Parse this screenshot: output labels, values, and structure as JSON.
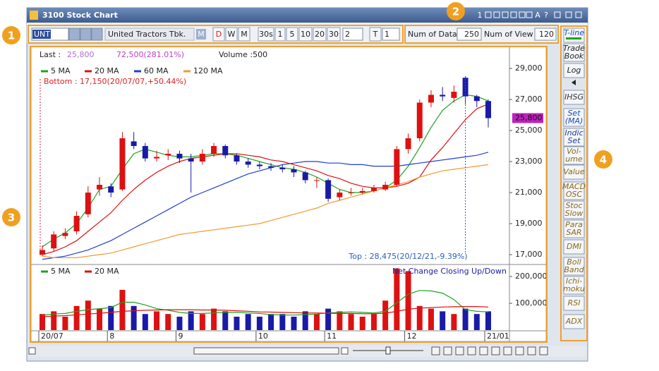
{
  "window": {
    "title": "3100 Stock Chart",
    "title_icons": [
      "1",
      "A",
      "?"
    ]
  },
  "toolbar": {
    "code": "UNTR",
    "name": "United Tractors Tbk.",
    "market": "M",
    "periods": [
      "D",
      "W",
      "M"
    ],
    "intervals": [
      "30s",
      "1",
      "5",
      "10",
      "20",
      "30"
    ],
    "interval_input": "2",
    "tick_label": "T",
    "tick_input": "1",
    "num_of_data_label": "Num of Data",
    "num_of_data": "250",
    "num_of_view_label": "Num of View",
    "num_of_view": "120"
  },
  "info": {
    "last_label": "Last :",
    "last": "25,800",
    "change": "72,500(281.01%)",
    "volume": "Volume :500"
  },
  "chart_data": [
    {
      "type": "candlestick",
      "up_color": "#dd1111",
      "down_color": "#1a1aa8",
      "open": [
        17000,
        17400,
        18200,
        18500,
        19600,
        21200,
        21400,
        21200,
        24300,
        24000,
        23200,
        23400,
        23500,
        23200,
        23000,
        23500,
        24000,
        23400,
        23000,
        22800,
        22700,
        22600,
        22500,
        22300,
        21800,
        21800,
        20700,
        21000,
        21000,
        21100,
        21200,
        21500,
        23800,
        24500,
        26800,
        27300,
        27100,
        28400,
        27200,
        26900
      ],
      "high": [
        17600,
        18500,
        18700,
        19800,
        21400,
        22000,
        21600,
        24900,
        24900,
        24200,
        23700,
        23800,
        23700,
        23500,
        23800,
        24200,
        24100,
        23500,
        23200,
        23000,
        22900,
        22800,
        22700,
        22400,
        22000,
        21900,
        21200,
        21300,
        21300,
        21500,
        21700,
        24000,
        24800,
        27000,
        27600,
        27800,
        27900,
        28500,
        27300,
        27000
      ],
      "low": [
        16900,
        17200,
        18000,
        18300,
        19400,
        20800,
        20700,
        21100,
        23800,
        23000,
        23000,
        23100,
        22900,
        21000,
        22800,
        23300,
        23200,
        22800,
        22600,
        22500,
        22400,
        22300,
        22000,
        21600,
        21300,
        20400,
        20500,
        20800,
        20900,
        21000,
        21100,
        21400,
        23500,
        24300,
        26500,
        26900,
        26800,
        26700,
        26500,
        25200
      ],
      "close": [
        17300,
        18300,
        18400,
        19500,
        21000,
        21500,
        21000,
        24500,
        24000,
        23200,
        23300,
        23500,
        23200,
        23000,
        23500,
        24000,
        23400,
        23000,
        22800,
        22700,
        22600,
        22500,
        22300,
        21800,
        21800,
        20600,
        21000,
        21000,
        21100,
        21300,
        21500,
        23800,
        24500,
        26800,
        27300,
        27200,
        27500,
        27200,
        26900,
        25800
      ],
      "series": [
        {
          "name": "5 MA",
          "color": "#1fa31f",
          "values": [
            17500,
            18000,
            18400,
            19000,
            20000,
            21200,
            21400,
            22500,
            23500,
            23800,
            23600,
            23400,
            23300,
            23300,
            23400,
            23500,
            23500,
            23400,
            23200,
            23000,
            22800,
            22600,
            22500,
            22300,
            22000,
            21600,
            21200,
            21000,
            21000,
            21100,
            21300,
            21800,
            22700,
            23900,
            25200,
            26300,
            26900,
            27300,
            27200,
            26900
          ]
        },
        {
          "name": "20 MA",
          "color": "#dd1111",
          "values": [
            17000,
            17200,
            17500,
            17900,
            18500,
            19100,
            19700,
            20500,
            21200,
            21800,
            22300,
            22700,
            23000,
            23200,
            23300,
            23400,
            23500,
            23500,
            23400,
            23300,
            23100,
            23000,
            22800,
            22600,
            22400,
            22100,
            21900,
            21600,
            21400,
            21300,
            21300,
            21400,
            21600,
            22000,
            23100,
            23900,
            24800,
            25700,
            26400,
            26700
          ]
        },
        {
          "name": "60 MA",
          "color": "#1f3fcf",
          "values": [
            16700,
            16800,
            16900,
            17100,
            17300,
            17600,
            17900,
            18300,
            18700,
            19100,
            19500,
            19900,
            20300,
            20700,
            21000,
            21300,
            21600,
            21900,
            22200,
            22400,
            22600,
            22800,
            22900,
            23000,
            23000,
            22900,
            22900,
            22800,
            22800,
            22700,
            22700,
            22700,
            22800,
            22900,
            23000,
            23100,
            23200,
            23300,
            23400,
            23600
          ]
        },
        {
          "name": "120 MA",
          "color": "#f29a2e",
          "values": [
            16900,
            16800,
            16800,
            16800,
            16900,
            17000,
            17100,
            17300,
            17500,
            17700,
            17900,
            18100,
            18300,
            18400,
            18500,
            18600,
            18700,
            18800,
            18900,
            19000,
            19200,
            19400,
            19600,
            19800,
            20000,
            20300,
            20500,
            20700,
            20900,
            21100,
            21300,
            21500,
            21700,
            22000,
            22200,
            22400,
            22500,
            22600,
            22700,
            22800
          ]
        }
      ],
      "ylim": [
        16500,
        30230
      ],
      "yticks": [
        {
          "value": 17000,
          "label": "17,000"
        },
        {
          "value": 19000,
          "label": "19,000"
        },
        {
          "value": 21000,
          "label": "21,000"
        },
        {
          "value": 23000,
          "label": "23,000"
        },
        {
          "value": 25000,
          "label": "25,000"
        },
        {
          "value": 27000,
          "label": "27,000"
        },
        {
          "value": 29000,
          "label": "29,000"
        }
      ],
      "last": {
        "value": 25800,
        "label": "25,800"
      },
      "last_color": "#c020c0",
      "annotations": {
        "bottom": "Bottom : 17,150(20/07/07,+50.44%)",
        "top": "Top : 28,475(20/12/21,-9.39%)"
      }
    },
    {
      "type": "bar",
      "categories": [
        "20/07",
        null,
        null,
        null,
        null,
        null,
        "8",
        null,
        null,
        null,
        null,
        null,
        "9",
        null,
        null,
        null,
        null,
        null,
        null,
        "10",
        null,
        null,
        null,
        null,
        null,
        "11",
        null,
        null,
        null,
        null,
        null,
        null,
        "12",
        null,
        null,
        null,
        null,
        null,
        null,
        "21/01"
      ],
      "values": [
        60000,
        70000,
        50000,
        90000,
        110000,
        80000,
        90000,
        150000,
        90000,
        60000,
        70000,
        60000,
        50000,
        70000,
        60000,
        80000,
        70000,
        50000,
        60000,
        50000,
        60000,
        60000,
        50000,
        70000,
        60000,
        80000,
        70000,
        60000,
        50000,
        60000,
        110000,
        230000,
        220000,
        90000,
        80000,
        70000,
        60000,
        80000,
        60000,
        70000
      ],
      "series": [
        {
          "name": "5 MA",
          "color": "#1fa31f",
          "values": [
            55000,
            60000,
            62000,
            70000,
            76000,
            80000,
            84000,
            104000,
            104000,
            94000,
            80000,
            74000,
            66000,
            62000,
            62000,
            64000,
            66000,
            66000,
            64000,
            62000,
            58000,
            56000,
            56000,
            58000,
            60000,
            64000,
            66000,
            68000,
            66000,
            64000,
            70000,
            102000,
            134000,
            148000,
            146000,
            138000,
            114000,
            76000,
            70000,
            68000
          ]
        },
        {
          "name": "20 MA",
          "color": "#dd1111",
          "values": [
            50000,
            52000,
            54000,
            57000,
            60000,
            63000,
            66000,
            70000,
            72000,
            74000,
            75000,
            76000,
            76000,
            76000,
            75000,
            75000,
            74000,
            72000,
            70000,
            68000,
            67000,
            66000,
            65000,
            64000,
            64000,
            63000,
            62000,
            62000,
            61000,
            61000,
            63000,
            70000,
            78000,
            82000,
            84000,
            86000,
            87000,
            88000,
            88000,
            86000
          ]
        }
      ],
      "ylim": [
        0,
        236800
      ],
      "yticks": [
        {
          "value": 100000,
          "label": "100,000"
        },
        {
          "value": 200000,
          "label": "200,000"
        }
      ],
      "annotation": "Net Change Closing Up/Down"
    }
  ],
  "side_buttons": [
    {
      "lines": [
        "T-line"
      ],
      "color": "#1a4fb5"
    },
    {
      "lines": [
        "Trade",
        "Book"
      ],
      "color": "#222222"
    },
    {
      "lines": [
        "Log"
      ],
      "color": "#222222"
    },
    {
      "lines": [
        "IHSG"
      ],
      "color": "#333333"
    },
    {
      "lines": [
        "Set",
        "(MA)"
      ],
      "color": "#1a4fb5"
    },
    {
      "lines": [
        "Indic",
        "Set"
      ],
      "color": "#1a3f95"
    },
    {
      "lines": [
        "Vol-",
        "ume"
      ],
      "color": "#8a6a1a"
    },
    {
      "lines": [
        "Value"
      ],
      "color": "#8a6a1a"
    },
    {
      "lines": [
        "MACD",
        "OSC"
      ],
      "color": "#8a6a1a"
    },
    {
      "lines": [
        "Stoc",
        "Slow"
      ],
      "color": "#8a6a1a"
    },
    {
      "lines": [
        "Para",
        "SAR"
      ],
      "color": "#8a6a1a"
    },
    {
      "lines": [
        "DMI"
      ],
      "color": "#8a6a1a"
    },
    {
      "lines": [
        "Boll",
        "Band"
      ],
      "color": "#8a6a1a"
    },
    {
      "lines": [
        "Ichi-",
        "moku"
      ],
      "color": "#8a6a1a"
    },
    {
      "lines": [
        "RSI"
      ],
      "color": "#8a6a1a"
    },
    {
      "lines": [
        "ADX"
      ],
      "color": "#8a6a1a"
    }
  ],
  "callouts": [
    "1",
    "2",
    "3",
    "4"
  ]
}
